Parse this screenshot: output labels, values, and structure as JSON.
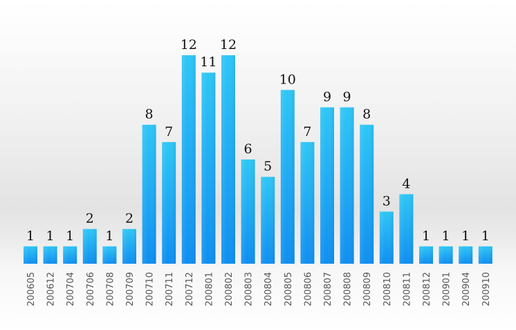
{
  "chart_data": {
    "type": "bar",
    "categories": [
      "200605",
      "200612",
      "200704",
      "200706",
      "200708",
      "200709",
      "200710",
      "200711",
      "200712",
      "200801",
      "200802",
      "200803",
      "200804",
      "200805",
      "200806",
      "200807",
      "200808",
      "200809",
      "200810",
      "200811",
      "200812",
      "200901",
      "200904",
      "200910"
    ],
    "values": [
      1,
      1,
      1,
      2,
      1,
      2,
      8,
      7,
      12,
      11,
      12,
      6,
      5,
      10,
      7,
      9,
      9,
      8,
      3,
      4,
      1,
      1,
      1,
      1
    ],
    "title": "",
    "xlabel": "",
    "ylabel": "",
    "ylim": [
      0,
      12
    ],
    "grid": false,
    "legend": "none",
    "data_labels": true,
    "colors": {
      "bar_top": "#2ec6f5",
      "bar_bottom": "#0e8ef0",
      "label_text": "#111111",
      "tick_text": "#555555"
    }
  }
}
